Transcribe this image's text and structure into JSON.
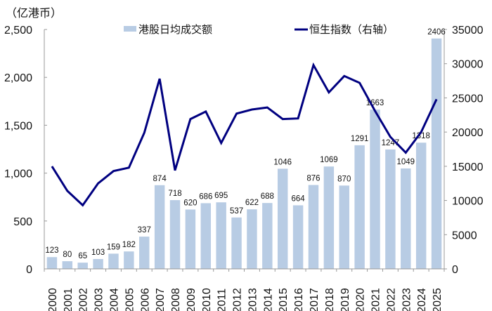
{
  "chart_data": {
    "type": "bar+line",
    "title": "",
    "unit_label": "（亿港币）",
    "categories": [
      "2000",
      "2001",
      "2002",
      "2003",
      "2004",
      "2005",
      "2006",
      "2007",
      "2008",
      "2009",
      "2010",
      "2011",
      "2012",
      "2013",
      "2014",
      "2015",
      "2016",
      "2017",
      "2018",
      "2019",
      "2020",
      "2021",
      "2022",
      "2023",
      "2024",
      "2025"
    ],
    "series": [
      {
        "name": "港股日均成交额",
        "type": "bar",
        "axis": "left",
        "color": "#b8cce4",
        "values": [
          123,
          80,
          65,
          103,
          159,
          182,
          337,
          874,
          718,
          620,
          686,
          695,
          537,
          622,
          688,
          1046,
          664,
          876,
          1069,
          870,
          1291,
          1663,
          1247,
          1049,
          1318,
          2406
        ]
      },
      {
        "name": "恒生指数（右轴）",
        "type": "line",
        "axis": "right",
        "color": "#000080",
        "values": [
          15000,
          11400,
          9300,
          12500,
          14300,
          14800,
          19900,
          27800,
          14400,
          21900,
          23000,
          18400,
          22700,
          23300,
          23600,
          21900,
          22000,
          29800,
          25800,
          28200,
          27200,
          23100,
          19300,
          17000,
          20000,
          24800
        ]
      }
    ],
    "left_axis": {
      "min": 0,
      "max": 2500,
      "ticks": [
        "0",
        "500",
        "1,000",
        "1,500",
        "2,000",
        "2,500"
      ]
    },
    "right_axis": {
      "min": 0,
      "max": 35000,
      "ticks": [
        "0",
        "5000",
        "10000",
        "15000",
        "20000",
        "25000",
        "30000",
        "35000"
      ]
    },
    "legend_position": "top",
    "grid": false
  },
  "legend": {
    "bar_label": "港股日均成交额",
    "line_label": "恒生指数（右轴）"
  }
}
